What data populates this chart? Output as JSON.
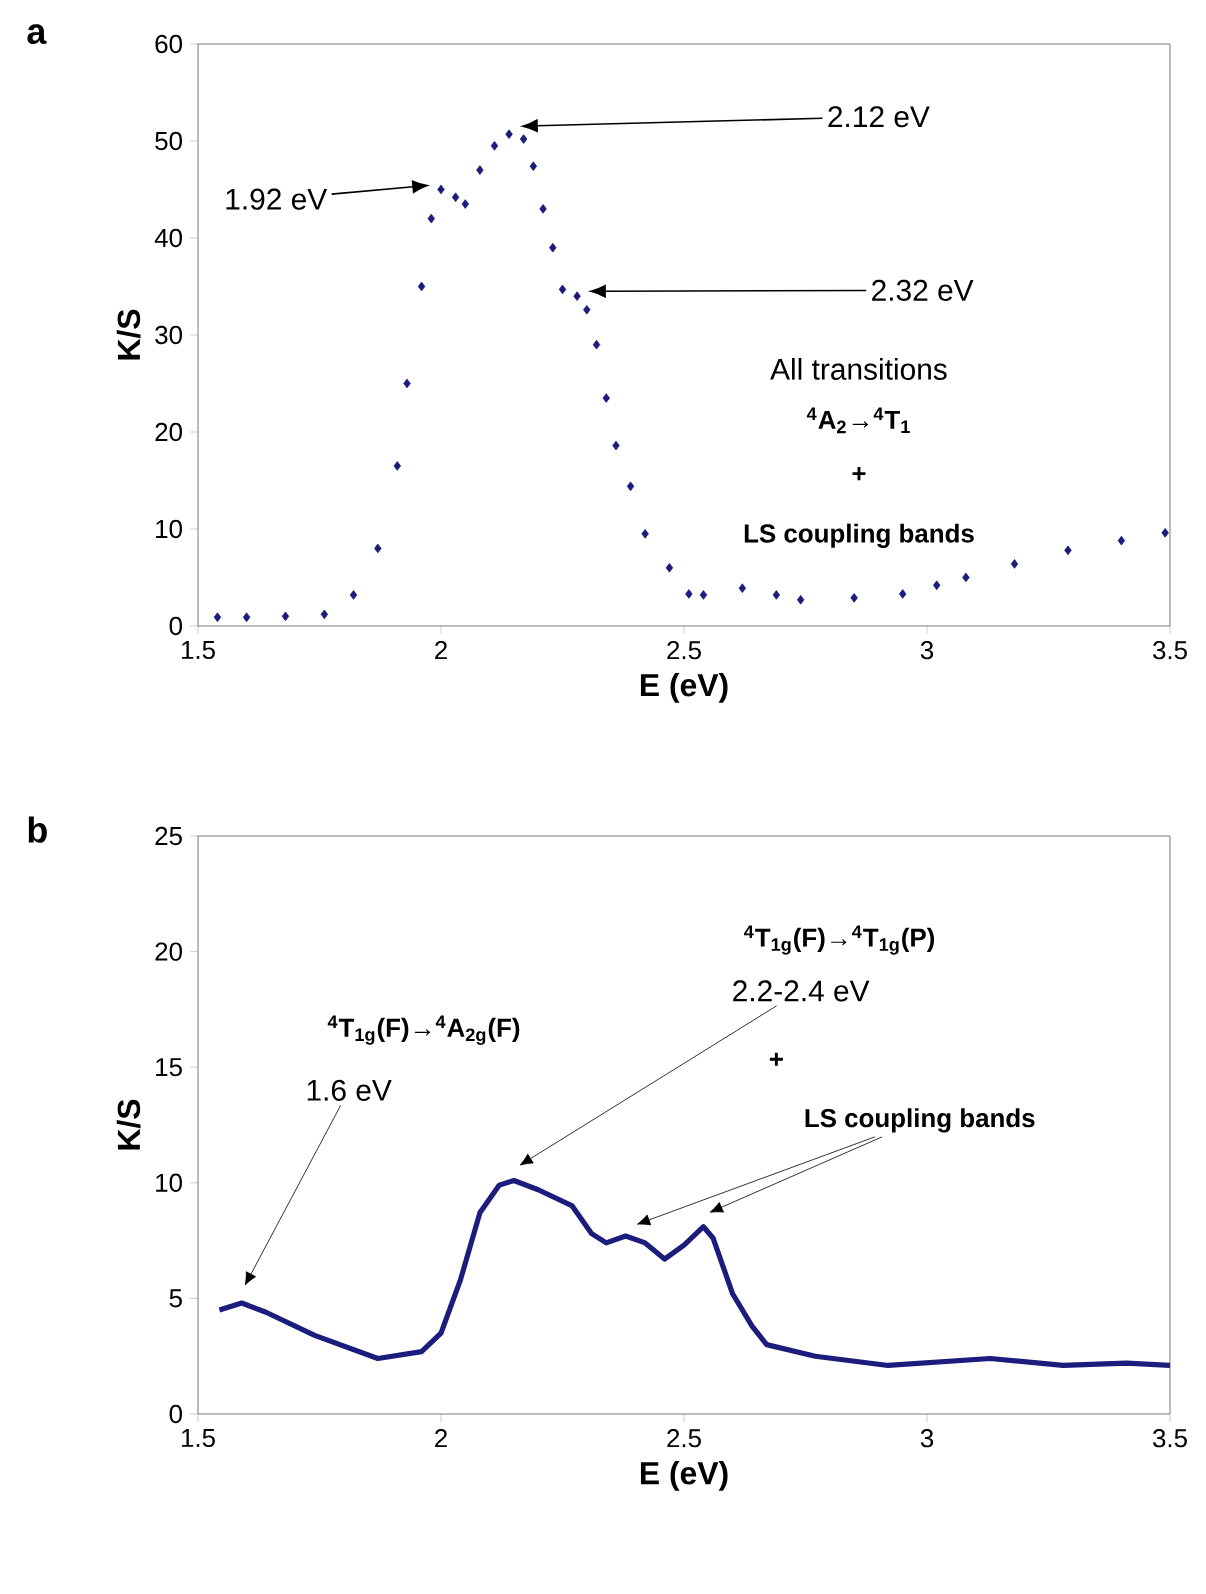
{
  "chart_data": [
    {
      "type": "scatter",
      "title": "a",
      "xlabel": "E (eV)",
      "ylabel": "K/S",
      "color": "#1c1c7c",
      "marker": "diamond",
      "x": [
        1.54,
        1.6,
        1.68,
        1.76,
        1.82,
        1.87,
        1.91,
        1.93,
        1.96,
        1.98,
        2.0,
        2.03,
        2.05,
        2.08,
        2.11,
        2.14,
        2.17,
        2.19,
        2.21,
        2.23,
        2.25,
        2.28,
        2.3,
        2.32,
        2.34,
        2.36,
        2.39,
        2.42,
        2.47,
        2.51,
        2.54,
        2.62,
        2.69,
        2.74,
        2.85,
        2.95,
        3.02,
        3.08,
        3.18,
        3.29,
        3.4,
        3.49
      ],
      "values": [
        0.9,
        0.9,
        1.0,
        1.2,
        3.2,
        8,
        16.5,
        25,
        35,
        42,
        45,
        44.2,
        43.5,
        47,
        49.5,
        50.7,
        50.2,
        47.4,
        43,
        39,
        34.7,
        34,
        32.6,
        29,
        23.5,
        18.6,
        14.4,
        9.5,
        6,
        3.3,
        3.2,
        3.9,
        3.2,
        2.7,
        2.9,
        3.3,
        4.2,
        5,
        6.4,
        7.8,
        8.8,
        9.6
      ],
      "xlim": [
        1.5,
        3.5
      ],
      "xticks": [
        1.5,
        2,
        2.5,
        3,
        3.5
      ],
      "ylim": [
        0,
        60
      ],
      "yticks": [
        0,
        10,
        20,
        30,
        40,
        50,
        60
      ],
      "annotations": [
        "1.92 eV",
        "2.12 eV",
        "2.32 eV",
        "All transitions",
        "$^{4}$A$_{2}$→$^{4}$T$_{1}$",
        "+",
        "LS coupling bands"
      ]
    },
    {
      "type": "line",
      "title": "b",
      "xlabel": "E (eV)",
      "ylabel": "K/S",
      "color": "#1c1c7c",
      "x": [
        1.544,
        1.59,
        1.64,
        1.74,
        1.87,
        1.96,
        2.0,
        2.04,
        2.08,
        2.12,
        2.15,
        2.2,
        2.27,
        2.31,
        2.34,
        2.38,
        2.42,
        2.46,
        2.5,
        2.54,
        2.56,
        2.6,
        2.64,
        2.67,
        2.77,
        2.92,
        3.13,
        3.28,
        3.41,
        3.5
      ],
      "values": [
        4.5,
        4.8,
        4.4,
        3.4,
        2.4,
        2.7,
        3.5,
        5.8,
        8.7,
        9.9,
        10.1,
        9.7,
        9.0,
        7.8,
        7.4,
        7.7,
        7.4,
        6.7,
        7.3,
        8.1,
        7.6,
        5.2,
        3.8,
        3.0,
        2.5,
        2.1,
        2.4,
        2.1,
        2.2,
        2.1
      ],
      "xlim": [
        1.5,
        3.5
      ],
      "xticks": [
        1.5,
        2,
        2.5,
        3,
        3.5
      ],
      "ylim": [
        0,
        25
      ],
      "yticks": [
        0,
        5,
        10,
        15,
        20,
        25
      ],
      "annotations": [
        "$^{4}$T$_{1g}$(F)→$^{4}$A$_{2g}$(F)",
        "1.6 eV",
        "$^{4}$T$_{1g}$(F)→$^{4}$T$_{1g}$(P)",
        "2.2-2.4 eV",
        "+",
        "LS coupling bands"
      ]
    }
  ]
}
